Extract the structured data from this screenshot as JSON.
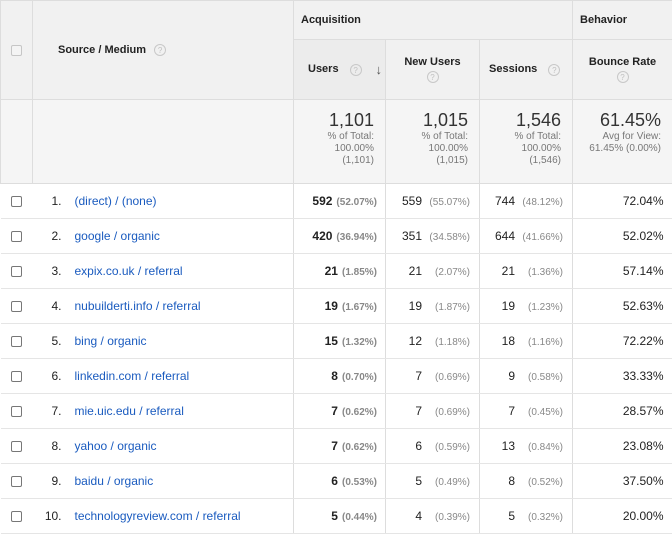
{
  "header": {
    "dimension_label": "Source / Medium",
    "group_acquisition": "Acquisition",
    "group_behavior": "Behavior",
    "col_users": "Users",
    "col_new_users": "New Users",
    "col_sessions": "Sessions",
    "col_bounce_rate": "Bounce Rate",
    "help_glyph": "?",
    "sort_glyph": "↓"
  },
  "totals": {
    "users": {
      "value": "1,101",
      "line1": "% of Total:",
      "line2": "100.00%",
      "line3": "(1,101)"
    },
    "new_users": {
      "value": "1,015",
      "line1": "% of Total:",
      "line2": "100.00%",
      "line3": "(1,015)"
    },
    "sessions": {
      "value": "1,546",
      "line1": "% of Total:",
      "line2": "100.00%",
      "line3": "(1,546)"
    },
    "bounce_rate": {
      "value": "61.45%",
      "line1": "Avg for View:",
      "line2": "61.45% (0.00%)"
    }
  },
  "rows": [
    {
      "idx": "1.",
      "source": "(direct) / (none)",
      "users": "592",
      "users_pct": "(52.07%)",
      "new_users": "559",
      "new_users_pct": "(55.07%)",
      "sessions": "744",
      "sessions_pct": "(48.12%)",
      "bounce": "72.04%"
    },
    {
      "idx": "2.",
      "source": "google / organic",
      "users": "420",
      "users_pct": "(36.94%)",
      "new_users": "351",
      "new_users_pct": "(34.58%)",
      "sessions": "644",
      "sessions_pct": "(41.66%)",
      "bounce": "52.02%"
    },
    {
      "idx": "3.",
      "source": "expix.co.uk / referral",
      "users": "21",
      "users_pct": "(1.85%)",
      "new_users": "21",
      "new_users_pct": "(2.07%)",
      "sessions": "21",
      "sessions_pct": "(1.36%)",
      "bounce": "57.14%"
    },
    {
      "idx": "4.",
      "source": "nubuilderti.info / referral",
      "users": "19",
      "users_pct": "(1.67%)",
      "new_users": "19",
      "new_users_pct": "(1.87%)",
      "sessions": "19",
      "sessions_pct": "(1.23%)",
      "bounce": "52.63%"
    },
    {
      "idx": "5.",
      "source": "bing / organic",
      "users": "15",
      "users_pct": "(1.32%)",
      "new_users": "12",
      "new_users_pct": "(1.18%)",
      "sessions": "18",
      "sessions_pct": "(1.16%)",
      "bounce": "72.22%"
    },
    {
      "idx": "6.",
      "source": "linkedin.com / referral",
      "users": "8",
      "users_pct": "(0.70%)",
      "new_users": "7",
      "new_users_pct": "(0.69%)",
      "sessions": "9",
      "sessions_pct": "(0.58%)",
      "bounce": "33.33%"
    },
    {
      "idx": "7.",
      "source": "mie.uic.edu / referral",
      "users": "7",
      "users_pct": "(0.62%)",
      "new_users": "7",
      "new_users_pct": "(0.69%)",
      "sessions": "7",
      "sessions_pct": "(0.45%)",
      "bounce": "28.57%"
    },
    {
      "idx": "8.",
      "source": "yahoo / organic",
      "users": "7",
      "users_pct": "(0.62%)",
      "new_users": "6",
      "new_users_pct": "(0.59%)",
      "sessions": "13",
      "sessions_pct": "(0.84%)",
      "bounce": "23.08%"
    },
    {
      "idx": "9.",
      "source": "baidu / organic",
      "users": "6",
      "users_pct": "(0.53%)",
      "new_users": "5",
      "new_users_pct": "(0.49%)",
      "sessions": "8",
      "sessions_pct": "(0.52%)",
      "bounce": "37.50%"
    },
    {
      "idx": "10.",
      "source": "technologyreview.com / referral",
      "users": "5",
      "users_pct": "(0.44%)",
      "new_users": "4",
      "new_users_pct": "(0.39%)",
      "sessions": "5",
      "sessions_pct": "(0.32%)",
      "bounce": "20.00%"
    }
  ],
  "colors": {
    "link": "#1a5bbf",
    "header_bg": "#f1f1f1",
    "border": "#dddddd"
  }
}
